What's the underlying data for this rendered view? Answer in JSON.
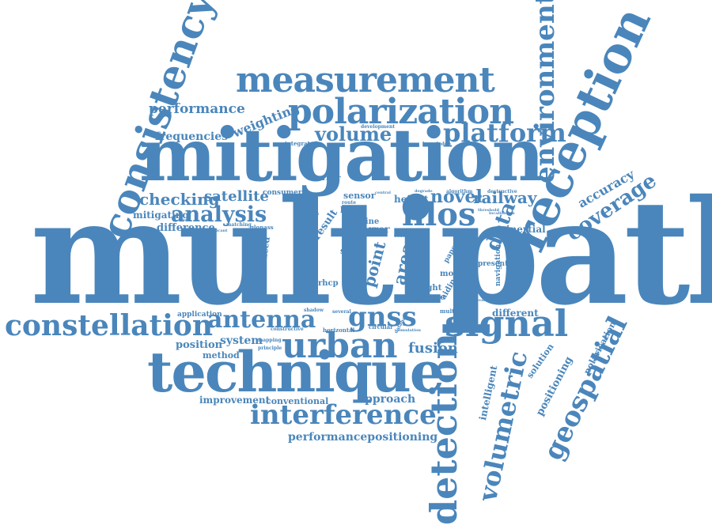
{
  "colors": {
    "word": "#4a86bb",
    "background": "#ffffff"
  },
  "words": {
    "multipath": "multipath",
    "mitigation": "mitigation",
    "technique": "technique",
    "reception": "reception",
    "consistency": "consistency",
    "measurement": "measurement",
    "polarization": "polarization",
    "signal": "signal",
    "constellation": "constellation",
    "urban": "urban",
    "interference": "interference",
    "detection": "detection",
    "environment": "environment",
    "volumetric": "volumetric",
    "geospatial": "geospatial",
    "antenna": "antenna",
    "gnss": "gnss",
    "nlos": "nlos",
    "platform": "platform",
    "analysis": "analysis",
    "coverage": "coverage",
    "accuracy": "accuracy",
    "volume": "volume",
    "novel": "novel",
    "railway": "railway",
    "checking": "checking",
    "satellite": "satellite",
    "performance_top": "performance",
    "weighting": "weighting",
    "frequencies": "frequencies",
    "mitigating": "mitigating",
    "difference": "difference",
    "data": "data",
    "point": "point",
    "cloud": "cloud",
    "area": "area",
    "fusion": "fusion",
    "approach": "approach",
    "performancepositioning": "performancepositioning",
    "improvement": "improvement",
    "conventional": "conventional",
    "position": "position",
    "system": "system",
    "method": "method",
    "application": "application",
    "inertial": "inertial",
    "navigation": "navigation",
    "different": "different",
    "intelligent": "intelligent",
    "solution": "solution",
    "positioning": "positioning",
    "polarisation": "polarisation",
    "result": "result",
    "dual": "dual",
    "advanced": "advanced",
    "navigationand": "navigationand",
    "sensor": "sensor",
    "height": "height",
    "lhcp": "lhcp",
    "rhcp": "rhcp",
    "error": "error",
    "line": "line",
    "set": "set",
    "sight": "sight",
    "dense": "dense",
    "model": "model",
    "present": "present",
    "aiding": "aiding",
    "paper": "paper",
    "digital": "digital",
    "carrier": "carrier",
    "consumer": "consumer",
    "integrated": "integrated",
    "london": "london",
    "glonass": "glonass",
    "matching": "matching",
    "effect": "effect",
    "output": "output",
    "horizontal": "horizontal",
    "circular": "circular",
    "multiple": "multiple",
    "several": "several",
    "shadow": "shadow",
    "constructive": "constructive",
    "mapping": "mapping",
    "principle": "principle",
    "development": "development",
    "knowledge": "knowledge",
    "algorithm": "algorithm",
    "destructive": "destructive",
    "cost": "cost",
    "route": "route",
    "central": "central",
    "degrade": "degrade",
    "availability": "availability",
    "correction": "correction",
    "significant": "significant",
    "elevation": "elevation",
    "technology": "technology",
    "simulation": "simulation",
    "database": "database",
    "localization": "localization",
    "threshold": "threshold"
  }
}
